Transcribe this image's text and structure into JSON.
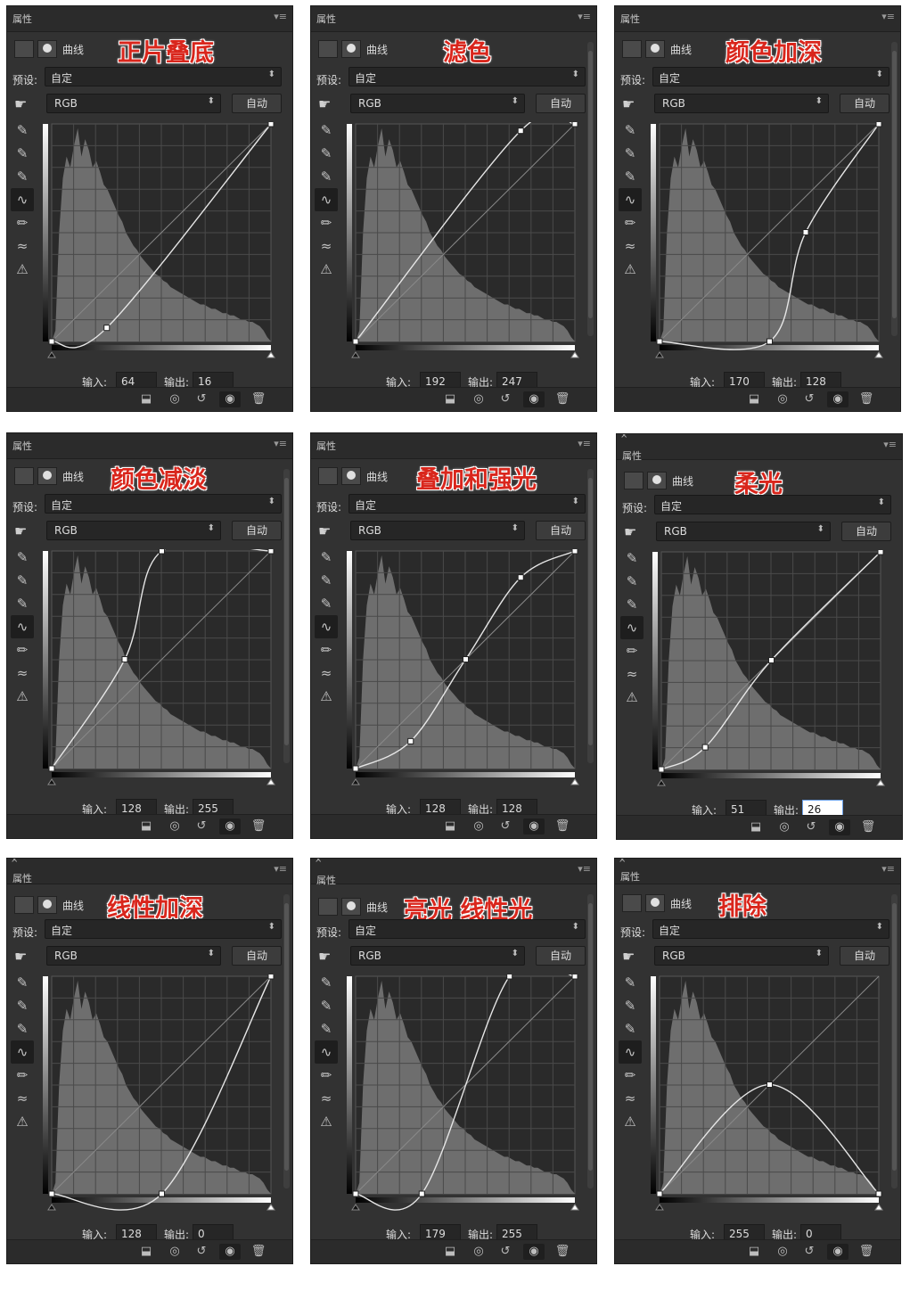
{
  "common": {
    "panel_title": "属性",
    "curves_label": "曲线",
    "preset_label": "预设:",
    "preset_value": "自定",
    "channel_value": "RGB",
    "auto_label": "自动",
    "input_label": "输入:",
    "output_label": "输出:",
    "icons": {
      "adjustment": "curves-adjustment-icon",
      "mask": "layer-mask-icon",
      "hand": "target-adjust-hand-icon",
      "black_point": "eyedropper-black-icon",
      "gray_point": "eyedropper-gray-icon",
      "white_point": "eyedropper-white-icon",
      "curve_tool": "curve-points-icon",
      "pencil": "pencil-draw-icon",
      "smooth": "smooth-curve-icon",
      "clipping": "clipping-warning-icon",
      "clip_layer": "clip-to-layer-icon",
      "view_prev": "view-previous-state-icon",
      "reset": "reset-icon",
      "visibility": "eye-icon",
      "delete": "trash-icon"
    },
    "colors": {
      "panel": "#323232",
      "graph_bg": "#2a2a2a",
      "histogram": "#6e6e6e",
      "curve": "#e6e6e6",
      "label_red": "#d9261c"
    }
  },
  "panels": [
    {
      "blend_label": "正片叠底",
      "input": "64",
      "output": "16",
      "curve_points": [
        [
          0,
          0
        ],
        [
          64,
          16
        ],
        [
          255,
          255
        ]
      ]
    },
    {
      "blend_label": "滤色",
      "input": "192",
      "output": "247",
      "curve_points": [
        [
          0,
          0
        ],
        [
          192,
          247
        ],
        [
          255,
          255
        ]
      ]
    },
    {
      "blend_label": "颜色加深",
      "input": "170",
      "output": "128",
      "curve_points": [
        [
          0,
          0
        ],
        [
          128,
          0
        ],
        [
          170,
          128
        ],
        [
          255,
          255
        ]
      ]
    },
    {
      "blend_label": "颜色减淡",
      "input": "128",
      "output": "255",
      "curve_points": [
        [
          0,
          0
        ],
        [
          85,
          128
        ],
        [
          128,
          255
        ],
        [
          255,
          255
        ]
      ]
    },
    {
      "blend_label": "叠加和强光",
      "input": "128",
      "output": "128",
      "curve_points": [
        [
          0,
          0
        ],
        [
          64,
          32
        ],
        [
          128,
          128
        ],
        [
          192,
          224
        ],
        [
          255,
          255
        ]
      ]
    },
    {
      "blend_label": "柔光",
      "input": "51",
      "output": "26",
      "curve_points": [
        [
          0,
          0
        ],
        [
          51,
          26
        ],
        [
          128,
          128
        ],
        [
          255,
          255
        ]
      ]
    },
    {
      "blend_label": "线性加深",
      "input": "128",
      "output": "0",
      "curve_points": [
        [
          0,
          0
        ],
        [
          128,
          0
        ],
        [
          255,
          255
        ]
      ]
    },
    {
      "blend_label": "亮光 线性光",
      "input": "179",
      "output": "255",
      "curve_points": [
        [
          0,
          0
        ],
        [
          77,
          0
        ],
        [
          179,
          255
        ],
        [
          255,
          255
        ]
      ]
    },
    {
      "blend_label": "排除",
      "input": "255",
      "output": "0",
      "curve_points": [
        [
          0,
          0
        ],
        [
          128,
          128
        ],
        [
          255,
          0
        ]
      ]
    }
  ]
}
